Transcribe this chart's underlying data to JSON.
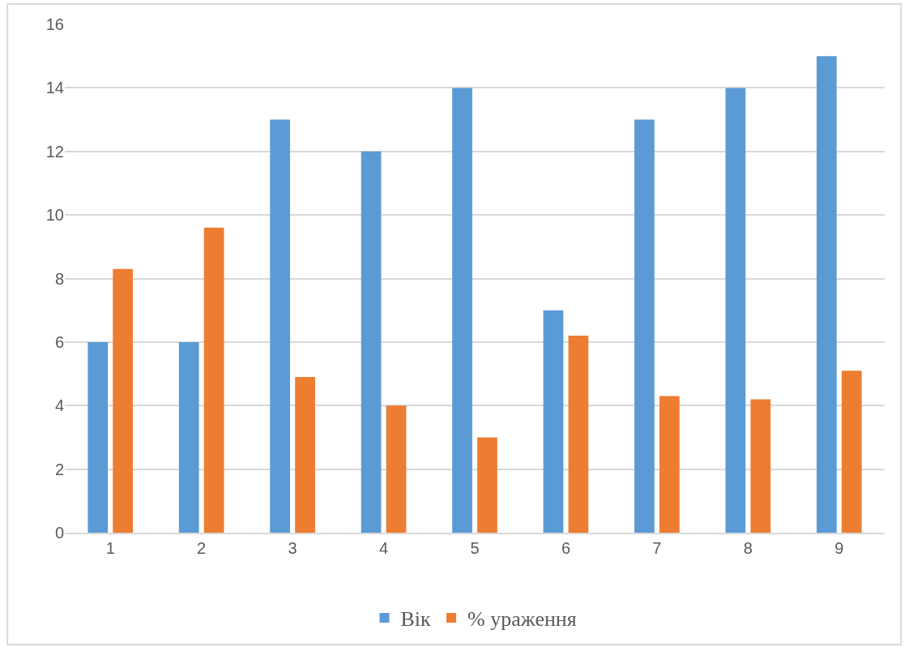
{
  "chart_data": {
    "type": "bar",
    "categories": [
      "1",
      "2",
      "3",
      "4",
      "5",
      "6",
      "7",
      "8",
      "9"
    ],
    "series": [
      {
        "name": "Вік",
        "color": "#5b9bd5",
        "values": [
          6,
          6,
          13,
          12,
          14,
          7,
          13,
          14,
          15
        ]
      },
      {
        "name": "% ураження",
        "color": "#ed7d31",
        "values": [
          8.3,
          9.6,
          4.9,
          4.0,
          3.0,
          6.2,
          4.3,
          4.2,
          5.1
        ]
      }
    ],
    "ylim": [
      0,
      16
    ],
    "yticks": [
      0,
      2,
      4,
      6,
      8,
      10,
      12,
      14,
      16
    ],
    "grid": "y",
    "legend": "bottom"
  }
}
